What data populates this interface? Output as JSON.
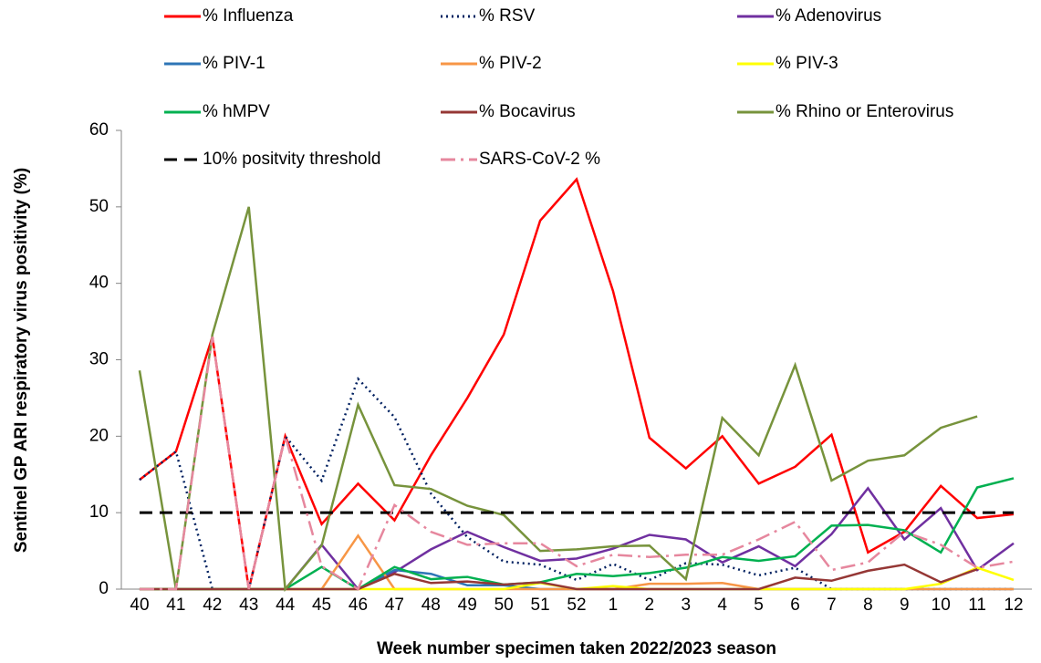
{
  "chart_data": {
    "type": "line",
    "y_label": "Sentinel GP ARI respiratory virus positivity (%)",
    "x_label": "Week number specimen taken 2022/2023 season",
    "categories": [
      "40",
      "41",
      "42",
      "43",
      "44",
      "45",
      "46",
      "47",
      "48",
      "49",
      "50",
      "51",
      "52",
      "1",
      "2",
      "3",
      "4",
      "5",
      "6",
      "7",
      "8",
      "9",
      "10",
      "11",
      "12"
    ],
    "ylim": [
      0,
      60
    ],
    "yticks": [
      0,
      10,
      20,
      30,
      40,
      50,
      60
    ],
    "series": [
      {
        "name": "% Influenza",
        "color": "#ff0000",
        "dash": "solid",
        "values": [
          14.3,
          18,
          33,
          0,
          20,
          8.5,
          13.8,
          9,
          17.5,
          25,
          33.3,
          48.2,
          53.6,
          39,
          19.8,
          15.8,
          20,
          13.8,
          16,
          20.2,
          4.8,
          7.5,
          13.5,
          9.3,
          9.8
        ]
      },
      {
        "name": "% RSV",
        "color": "#002060",
        "dash": "dot",
        "values": [
          14.3,
          18,
          0,
          0,
          20,
          14.2,
          27.5,
          22.5,
          12.5,
          6.8,
          3.6,
          3.2,
          1.2,
          3.3,
          1.2,
          3.4,
          3.2,
          1.8,
          2.8,
          0,
          0,
          0,
          0,
          0,
          0
        ]
      },
      {
        "name": "% Adenovirus",
        "color": "#7030a0",
        "dash": "solid",
        "values": [
          0,
          0,
          0,
          0,
          0,
          5.8,
          0,
          2.2,
          5.2,
          7.5,
          5.5,
          3.7,
          4,
          5.3,
          7.1,
          6.5,
          3.5,
          5.6,
          3,
          7.2,
          13.2,
          6.5,
          10.6,
          2.5,
          6
        ]
      },
      {
        "name": "% PIV-1",
        "color": "#2e75b6",
        "dash": "solid",
        "values": [
          0,
          0,
          0,
          0,
          0,
          0,
          0,
          2.5,
          2,
          0.5,
          0.5,
          0,
          0,
          0,
          0,
          0,
          0,
          0,
          0,
          0,
          0,
          0,
          0,
          0,
          0
        ]
      },
      {
        "name": "% PIV-2",
        "color": "#f79646",
        "dash": "solid",
        "values": [
          0,
          0,
          0,
          0,
          0,
          0,
          7,
          0,
          0,
          0,
          0,
          0,
          0,
          0,
          0.7,
          0.7,
          0.8,
          0,
          0,
          0,
          0,
          0,
          0,
          0,
          0
        ]
      },
      {
        "name": "% PIV-3",
        "color": "#ffff00",
        "dash": "solid",
        "values": [
          0,
          0,
          0,
          0,
          0,
          0,
          0,
          0,
          0,
          0,
          0,
          0.8,
          0,
          0.4,
          0,
          0,
          0,
          0,
          0,
          0,
          0,
          0,
          0.7,
          2.8,
          1.2
        ]
      },
      {
        "name": "% hMPV",
        "color": "#00b050",
        "dash": "solid",
        "values": [
          0,
          0,
          0,
          0,
          0,
          2.9,
          0,
          2.9,
          1.3,
          1.6,
          0.6,
          0.9,
          2,
          1.7,
          2.1,
          2.8,
          4.2,
          3.7,
          4.3,
          8.3,
          8.4,
          7.7,
          4.8,
          13.3,
          14.5
        ]
      },
      {
        "name": "% Bocavirus",
        "color": "#953735",
        "dash": "solid",
        "values": [
          0,
          0,
          0,
          0,
          0,
          0,
          0,
          2,
          0.8,
          1,
          0.6,
          0.9,
          0,
          0,
          0,
          0,
          0,
          0,
          1.5,
          1.1,
          2.4,
          3.2,
          0.9,
          2.6,
          null
        ]
      },
      {
        "name": "% Rhino or Enterovirus",
        "color": "#77933c",
        "dash": "solid",
        "values": [
          28.6,
          0,
          33.3,
          50,
          0,
          5.7,
          24.1,
          13.6,
          13.1,
          10.9,
          9.7,
          5,
          5.2,
          5.6,
          5.7,
          1.3,
          22.4,
          17.5,
          29.3,
          14.2,
          16.8,
          17.5,
          21.1,
          22.6,
          null
        ]
      },
      {
        "name": "10% positvity threshold",
        "color": "#000000",
        "dash": "dash",
        "values": [
          10,
          10,
          10,
          10,
          10,
          10,
          10,
          10,
          10,
          10,
          10,
          10,
          10,
          10,
          10,
          10,
          10,
          10,
          10,
          10,
          10,
          10,
          10,
          10,
          10
        ]
      },
      {
        "name": "SARS-CoV-2 %",
        "color": "#e6879e",
        "dash": "dashdot",
        "values": [
          0,
          0,
          33,
          0,
          20,
          3,
          0,
          11,
          7.5,
          5.8,
          6,
          6,
          3,
          4.5,
          4.2,
          4.5,
          4.5,
          6.5,
          8.8,
          2.5,
          3.5,
          7.5,
          5.8,
          2.8,
          3.6
        ]
      }
    ]
  }
}
